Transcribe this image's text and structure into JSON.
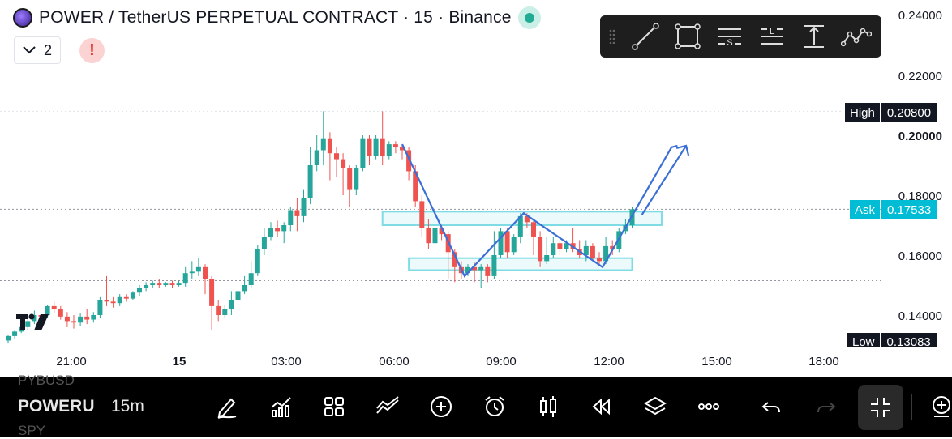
{
  "header": {
    "title": "POWER / TetherUS PERPETUAL CONTRACT · 15 · Binance",
    "collapse_count": "2",
    "alert_symbol": "!"
  },
  "drawing_toolbar": {
    "tools": [
      "trend-line",
      "rectangle",
      "long-position",
      "short-position",
      "measure",
      "path"
    ],
    "tool_letters": {
      "long": "S",
      "short": "L"
    }
  },
  "price_axis": {
    "labels": [
      "0.24000",
      "0.22000",
      "0.20000",
      "0.18000",
      "0.16000",
      "0.14000"
    ],
    "high": {
      "label": "High",
      "value": "0.20800"
    },
    "ask": {
      "label": "Ask",
      "value": "0.17533"
    },
    "low": {
      "label": "Low",
      "value": "0.13083"
    }
  },
  "time_axis": {
    "labels": [
      "21:00",
      "15",
      "03:00",
      "06:00",
      "09:00",
      "12:00",
      "15:00",
      "18:00"
    ]
  },
  "bottom_bar": {
    "symbol": "POWERU",
    "interval": "15m",
    "ghost_above": "PYBUSD",
    "ghost_below": "SPY"
  },
  "colors": {
    "up": "#26a69a",
    "down": "#ef5350",
    "ask": "#00bcd4",
    "drawing": "#3b6fd6",
    "range_box": "#7fdce4"
  },
  "chart_data": {
    "type": "candlestick",
    "x_unit": "15m bars",
    "ylim": [
      0.125,
      0.245
    ],
    "candles": [
      [
        0.1315,
        0.133,
        0.1305,
        0.1335
      ],
      [
        0.133,
        0.1345,
        0.132,
        0.135
      ],
      [
        0.1345,
        0.136,
        0.134,
        0.1375
      ],
      [
        0.136,
        0.138,
        0.135,
        0.1395
      ],
      [
        0.138,
        0.14,
        0.137,
        0.1415
      ],
      [
        0.14,
        0.1395,
        0.138,
        0.142
      ],
      [
        0.14,
        0.143,
        0.139,
        0.1435
      ],
      [
        0.143,
        0.142,
        0.1405,
        0.1445
      ],
      [
        0.142,
        0.1395,
        0.1385,
        0.143
      ],
      [
        0.1395,
        0.138,
        0.136,
        0.141
      ],
      [
        0.138,
        0.1375,
        0.1355,
        0.14
      ],
      [
        0.1375,
        0.1395,
        0.1365,
        0.1405
      ],
      [
        0.1395,
        0.1385,
        0.137,
        0.142
      ],
      [
        0.1385,
        0.14,
        0.1375,
        0.141
      ],
      [
        0.14,
        0.145,
        0.139,
        0.146
      ],
      [
        0.145,
        0.1445,
        0.143,
        0.153
      ],
      [
        0.1445,
        0.144,
        0.1425,
        0.146
      ],
      [
        0.144,
        0.146,
        0.143,
        0.147
      ],
      [
        0.146,
        0.1455,
        0.1445,
        0.147
      ],
      [
        0.1455,
        0.1475,
        0.145,
        0.148
      ],
      [
        0.1475,
        0.149,
        0.1465,
        0.15
      ],
      [
        0.149,
        0.15,
        0.148,
        0.151
      ],
      [
        0.15,
        0.1505,
        0.149,
        0.1515
      ],
      [
        0.1505,
        0.15,
        0.149,
        0.152
      ],
      [
        0.15,
        0.1505,
        0.1495,
        0.151
      ],
      [
        0.1505,
        0.15,
        0.149,
        0.1515
      ],
      [
        0.15,
        0.1505,
        0.1495,
        0.1515
      ],
      [
        0.1505,
        0.154,
        0.1495,
        0.156
      ],
      [
        0.154,
        0.1545,
        0.152,
        0.158
      ],
      [
        0.1545,
        0.156,
        0.153,
        0.159
      ],
      [
        0.156,
        0.152,
        0.147,
        0.157
      ],
      [
        0.152,
        0.143,
        0.135,
        0.153
      ],
      [
        0.143,
        0.14,
        0.138,
        0.145
      ],
      [
        0.14,
        0.142,
        0.139,
        0.1435
      ],
      [
        0.142,
        0.145,
        0.14,
        0.148
      ],
      [
        0.145,
        0.148,
        0.1445,
        0.1495
      ],
      [
        0.148,
        0.15,
        0.147,
        0.153
      ],
      [
        0.15,
        0.154,
        0.149,
        0.158
      ],
      [
        0.154,
        0.162,
        0.153,
        0.1635
      ],
      [
        0.162,
        0.166,
        0.16,
        0.169
      ],
      [
        0.166,
        0.169,
        0.165,
        0.171
      ],
      [
        0.169,
        0.168,
        0.166,
        0.1715
      ],
      [
        0.168,
        0.17,
        0.164,
        0.171
      ],
      [
        0.17,
        0.175,
        0.168,
        0.176
      ],
      [
        0.175,
        0.173,
        0.168,
        0.179
      ],
      [
        0.173,
        0.179,
        0.171,
        0.182
      ],
      [
        0.179,
        0.19,
        0.177,
        0.196
      ],
      [
        0.19,
        0.195,
        0.188,
        0.2
      ],
      [
        0.195,
        0.199,
        0.19,
        0.208
      ],
      [
        0.199,
        0.194,
        0.185,
        0.201
      ],
      [
        0.194,
        0.192,
        0.186,
        0.196
      ],
      [
        0.192,
        0.189,
        0.18,
        0.194
      ],
      [
        0.189,
        0.182,
        0.176,
        0.19
      ],
      [
        0.182,
        0.189,
        0.18,
        0.19
      ],
      [
        0.189,
        0.199,
        0.188,
        0.2
      ],
      [
        0.199,
        0.193,
        0.19,
        0.2
      ],
      [
        0.193,
        0.199,
        0.192,
        0.2
      ],
      [
        0.199,
        0.193,
        0.19,
        0.208
      ],
      [
        0.193,
        0.197,
        0.192,
        0.198
      ],
      [
        0.197,
        0.196,
        0.194,
        0.198
      ],
      [
        0.196,
        0.195,
        0.192,
        0.197
      ],
      [
        0.195,
        0.188,
        0.185,
        0.196
      ],
      [
        0.188,
        0.178,
        0.176,
        0.19
      ],
      [
        0.178,
        0.169,
        0.166,
        0.18
      ],
      [
        0.169,
        0.164,
        0.162,
        0.172
      ],
      [
        0.164,
        0.169,
        0.163,
        0.17
      ],
      [
        0.169,
        0.167,
        0.165,
        0.17
      ],
      [
        0.167,
        0.161,
        0.152,
        0.168
      ],
      [
        0.161,
        0.156,
        0.151,
        0.162
      ],
      [
        0.156,
        0.154,
        0.152,
        0.158
      ],
      [
        0.154,
        0.156,
        0.153,
        0.157
      ],
      [
        0.156,
        0.155,
        0.151,
        0.1575
      ],
      [
        0.155,
        0.156,
        0.149,
        0.157
      ],
      [
        0.156,
        0.153,
        0.151,
        0.157
      ],
      [
        0.153,
        0.16,
        0.152,
        0.168
      ],
      [
        0.16,
        0.168,
        0.159,
        0.169
      ],
      [
        0.168,
        0.161,
        0.159,
        0.169
      ],
      [
        0.161,
        0.166,
        0.16,
        0.167
      ],
      [
        0.166,
        0.173,
        0.164,
        0.174
      ],
      [
        0.173,
        0.171,
        0.169,
        0.174
      ],
      [
        0.171,
        0.166,
        0.16,
        0.172
      ],
      [
        0.166,
        0.158,
        0.156,
        0.168
      ],
      [
        0.158,
        0.16,
        0.157,
        0.166
      ],
      [
        0.16,
        0.164,
        0.159,
        0.166
      ],
      [
        0.164,
        0.162,
        0.16,
        0.165
      ],
      [
        0.162,
        0.164,
        0.161,
        0.165
      ],
      [
        0.164,
        0.162,
        0.161,
        0.169
      ],
      [
        0.162,
        0.16,
        0.159,
        0.165
      ],
      [
        0.16,
        0.163,
        0.158,
        0.165
      ],
      [
        0.163,
        0.159,
        0.158,
        0.164
      ],
      [
        0.159,
        0.158,
        0.157,
        0.161
      ],
      [
        0.158,
        0.163,
        0.157,
        0.166
      ],
      [
        0.163,
        0.162,
        0.16,
        0.165
      ],
      [
        0.162,
        0.168,
        0.161,
        0.169
      ],
      [
        0.168,
        0.17,
        0.167,
        0.172
      ],
      [
        0.17,
        0.1753,
        0.169,
        0.176
      ]
    ],
    "high_line": 0.208,
    "low_line": 0.13083,
    "dotted_lines": [
      0.1753,
      0.1515
    ],
    "range_boxes": [
      [
        0.17,
        0.1745
      ],
      [
        0.155,
        0.159
      ]
    ],
    "projection_path": [
      [
        0.197,
        0
      ],
      [
        0.153,
        0
      ],
      [
        0.174,
        0
      ],
      [
        0.156,
        0
      ],
      [
        0.196,
        0
      ]
    ]
  }
}
